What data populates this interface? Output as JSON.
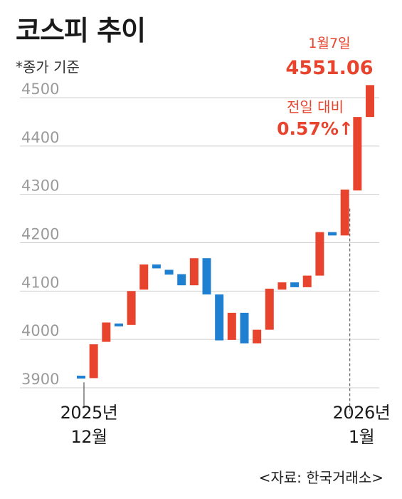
{
  "title": "코스피 추이",
  "subtitle": "*종가 기준",
  "annotation": {
    "date": "1월7일",
    "value": "4551.06",
    "change_label": "전일 대비",
    "change_value": "0.57%↑"
  },
  "x_labels": {
    "start_line1": "2025년",
    "start_line2": "12월",
    "end_line1": "2026년",
    "end_line2": "1월"
  },
  "source": "<자료: 한국거래소>",
  "colors": {
    "up": "#e8442d",
    "down": "#1f7fd0",
    "grid": "#cfcfcf",
    "axis_text": "#9a9a9a"
  },
  "chart_data": {
    "type": "waterfall",
    "title": "코스피 추이",
    "ylim": [
      3870,
      4600
    ],
    "yticks": [
      3900,
      4000,
      4100,
      4200,
      4300,
      4400,
      4500
    ],
    "y_tick_labels": [
      "3900",
      "4000",
      "4100",
      "4200",
      "4300",
      "4400",
      "4500"
    ],
    "x_range": [
      "2025년 12월",
      "2026년 1월"
    ],
    "bars": [
      {
        "from": 3925,
        "to": 3920
      },
      {
        "from": 3920,
        "to": 3990
      },
      {
        "from": 3995,
        "to": 4035
      },
      {
        "from": 4033,
        "to": 4030
      },
      {
        "from": 4030,
        "to": 4100
      },
      {
        "from": 4103,
        "to": 4155
      },
      {
        "from": 4155,
        "to": 4147
      },
      {
        "from": 4144,
        "to": 4134
      },
      {
        "from": 4135,
        "to": 4112
      },
      {
        "from": 4112,
        "to": 4168
      },
      {
        "from": 4168,
        "to": 4093
      },
      {
        "from": 4093,
        "to": 3998
      },
      {
        "from": 3999,
        "to": 4055
      },
      {
        "from": 4055,
        "to": 3992
      },
      {
        "from": 3992,
        "to": 4020
      },
      {
        "from": 4020,
        "to": 4105
      },
      {
        "from": 4103,
        "to": 4118
      },
      {
        "from": 4118,
        "to": 4108
      },
      {
        "from": 4108,
        "to": 4132
      },
      {
        "from": 4132,
        "to": 4222
      },
      {
        "from": 4222,
        "to": 4215
      },
      {
        "from": 4215,
        "to": 4310
      },
      {
        "from": 4308,
        "to": 4460
      },
      {
        "from": 4460,
        "to": 4526
      }
    ]
  }
}
